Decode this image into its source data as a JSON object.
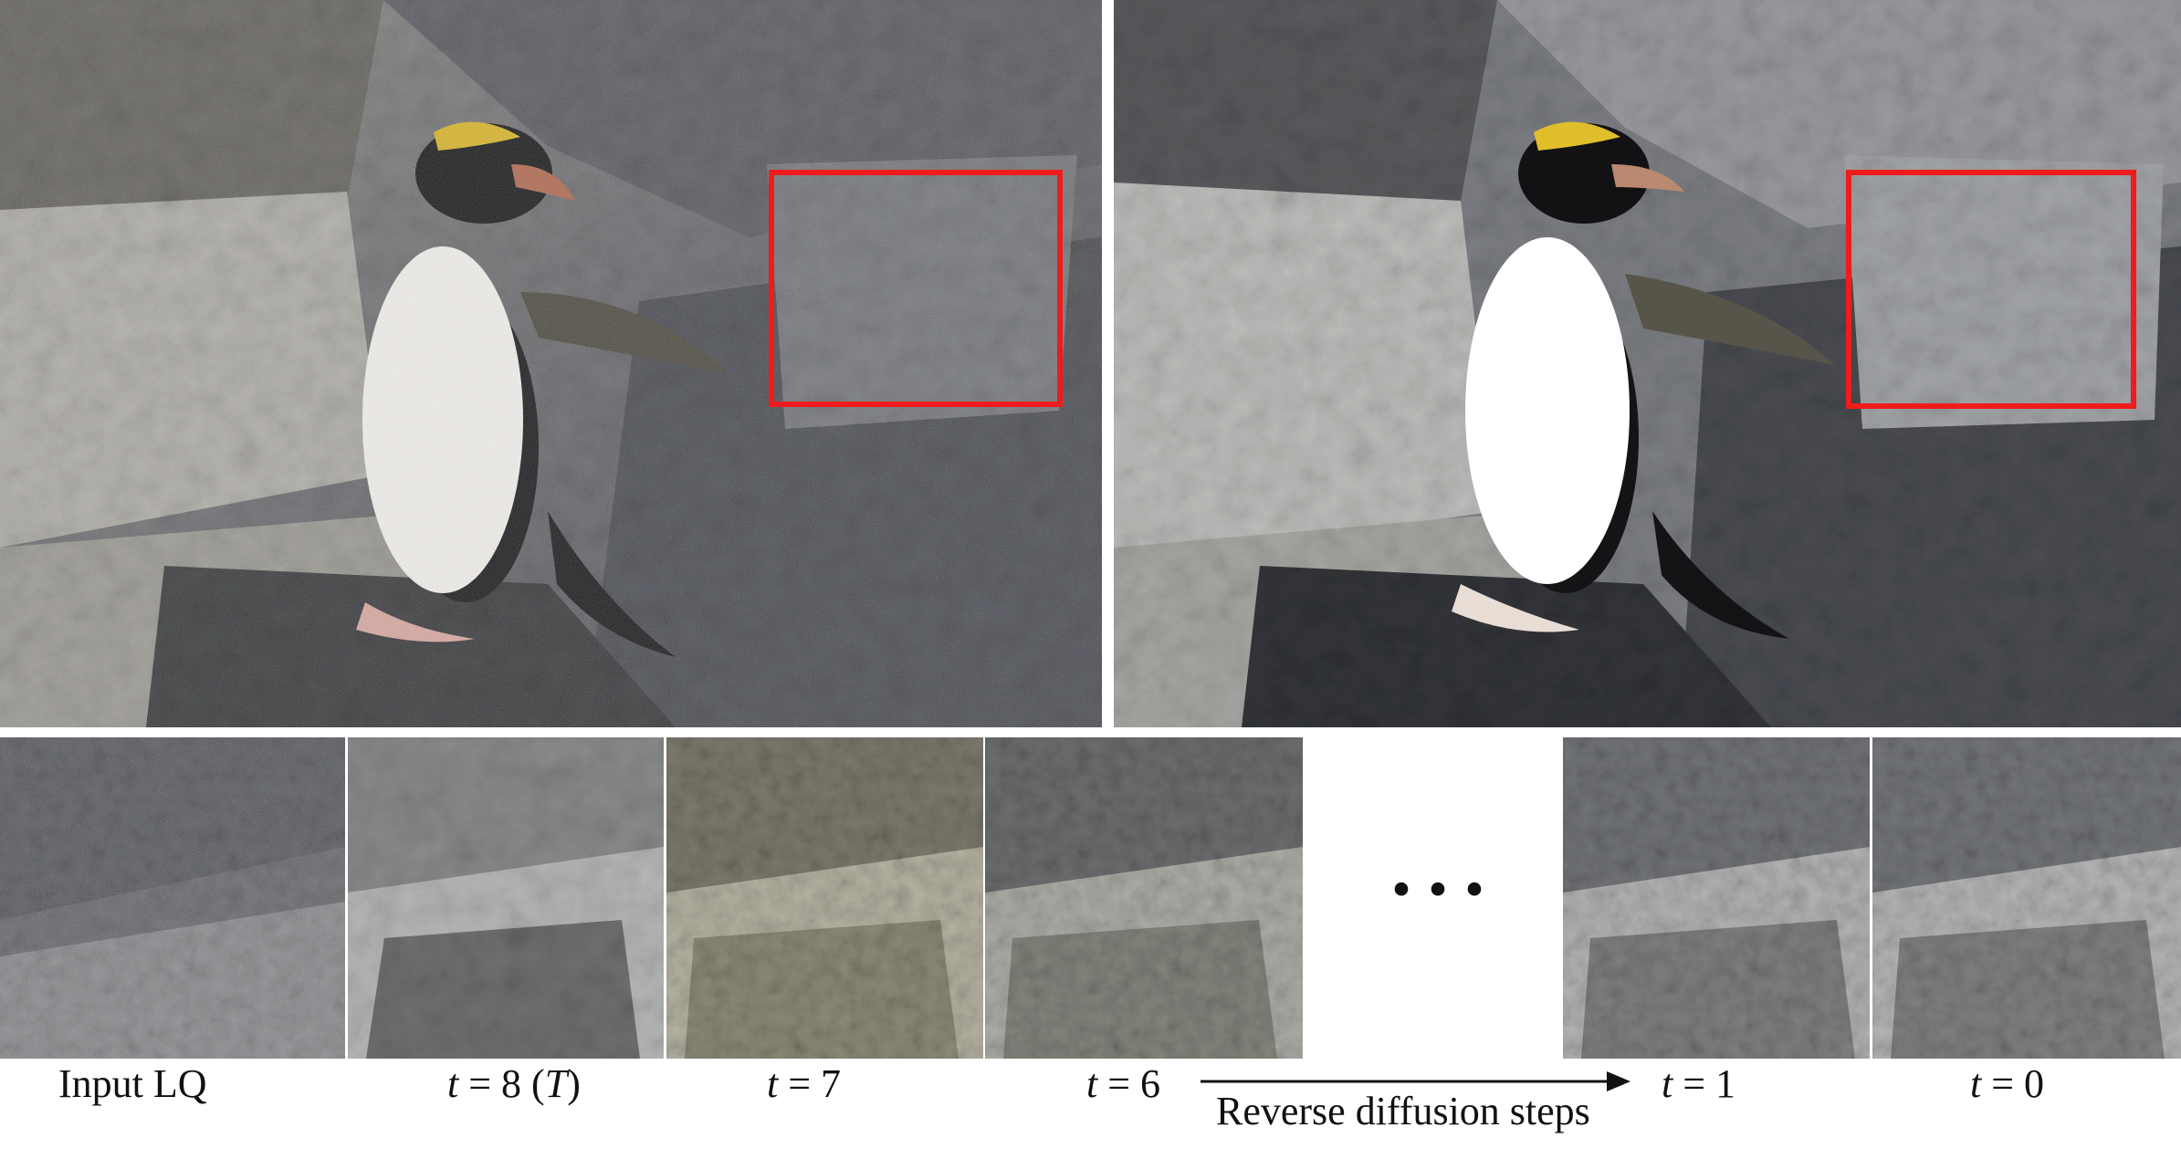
{
  "top_panels": {
    "left": {
      "content": "penguin-on-rocks-noisy"
    },
    "right": {
      "content": "penguin-on-rocks-restored"
    }
  },
  "crop_labels": {
    "input": "Input LQ",
    "t8_var": "t",
    "t8_eq": " = 8 (",
    "t8_T": "T",
    "t8_close": ")",
    "t7_var": "t",
    "t7_eq": " = 7",
    "t6_var": "t",
    "t6_eq": " = 6",
    "t1_var": "t",
    "t1_eq": " = 1",
    "t0_var": "t",
    "t0_eq": " = 0"
  },
  "ellipsis": "···",
  "arrow_caption": "Reverse diffusion steps",
  "colors": {
    "highlight_box": "#ee1c1c"
  }
}
